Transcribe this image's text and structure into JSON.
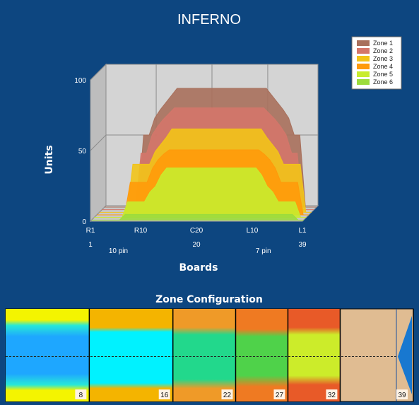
{
  "colors": {
    "background": "#0d4680",
    "zone1": "#a8705c",
    "zone2": "#d4766a",
    "zone3": "#f2c418",
    "zone4": "#ff9a0a",
    "zone5": "#c8ec2e",
    "zone6": "#9cdc3c",
    "lane": "#e0bc92",
    "arrow": "#1878d0"
  },
  "chart_data": [
    {
      "type": "area",
      "title": "INFERNO",
      "xlabel": "Boards",
      "ylabel": "Units",
      "ylim": [
        0,
        100
      ],
      "yticks": [
        "0",
        "50",
        "100"
      ],
      "x_ticks_primary": [
        "R1",
        "R10",
        "C20",
        "L10",
        "L1"
      ],
      "x_ticks_secondary": [
        "1",
        "20",
        "39"
      ],
      "x_annotations": [
        "10 pin",
        "7 pin"
      ],
      "legend_position": "top-right",
      "x": [
        1,
        2,
        3,
        4,
        5,
        6,
        7,
        8,
        9,
        10,
        11,
        12,
        13,
        14,
        15,
        16,
        17,
        18,
        19,
        20,
        21,
        22,
        23,
        24,
        25,
        26,
        27,
        28,
        29,
        30,
        31,
        32,
        33,
        34,
        35,
        36,
        37,
        38,
        39
      ],
      "series": [
        {
          "name": "Zone 1",
          "values": [
            0,
            0,
            0,
            0,
            0,
            0,
            0,
            51,
            51,
            63,
            69,
            74,
            79,
            84,
            84,
            84,
            84,
            84,
            84,
            84,
            84,
            84,
            84,
            84,
            84,
            84,
            84,
            84,
            84,
            84,
            79,
            74,
            69,
            63,
            51,
            51,
            0,
            0,
            0
          ]
        },
        {
          "name": "Zone 2",
          "values": [
            0,
            0,
            0,
            0,
            0,
            0,
            0,
            40,
            40,
            53,
            59,
            64,
            68,
            72,
            72,
            72,
            72,
            72,
            72,
            72,
            72,
            72,
            72,
            72,
            72,
            72,
            72,
            72,
            72,
            72,
            68,
            64,
            59,
            53,
            40,
            40,
            0,
            0,
            0
          ]
        },
        {
          "name": "Zone 3",
          "values": [
            0,
            0,
            0,
            0,
            0,
            0,
            34,
            34,
            34,
            34,
            43,
            48,
            53,
            59,
            59,
            59,
            59,
            59,
            59,
            59,
            59,
            59,
            59,
            59,
            59,
            59,
            59,
            59,
            59,
            59,
            53,
            48,
            43,
            34,
            34,
            34,
            34,
            0,
            0
          ]
        },
        {
          "name": "Zone 4",
          "values": [
            0,
            0,
            0,
            0,
            0,
            0,
            23,
            23,
            23,
            23,
            33,
            39,
            43,
            46,
            46,
            46,
            46,
            46,
            46,
            46,
            46,
            46,
            46,
            46,
            46,
            46,
            46,
            46,
            46,
            46,
            43,
            39,
            33,
            23,
            23,
            23,
            23,
            0,
            0
          ]
        },
        {
          "name": "Zone 5",
          "values": [
            0,
            0,
            0,
            0,
            0,
            0,
            11,
            11,
            11,
            11,
            18,
            22,
            30,
            35,
            35,
            35,
            35,
            35,
            35,
            35,
            35,
            35,
            35,
            35,
            35,
            35,
            35,
            35,
            35,
            35,
            30,
            22,
            18,
            11,
            11,
            11,
            11,
            0,
            0
          ]
        },
        {
          "name": "Zone 6",
          "values": [
            0,
            0,
            0,
            0,
            0,
            0,
            4,
            4,
            4,
            4,
            4,
            4,
            4,
            4,
            4,
            4,
            4,
            4,
            4,
            4,
            4,
            4,
            4,
            4,
            4,
            4,
            4,
            4,
            4,
            4,
            4,
            4,
            4,
            4,
            4,
            4,
            4,
            0,
            0
          ]
        }
      ]
    },
    {
      "type": "heatmap",
      "title": "Zone Configuration",
      "boundaries": [
        "8",
        "16",
        "22",
        "27",
        "32",
        "39"
      ],
      "zone_colors": {
        "outer": "#ffff00",
        "mid": "#00ccff",
        "core": "#1ea7ff"
      }
    }
  ]
}
